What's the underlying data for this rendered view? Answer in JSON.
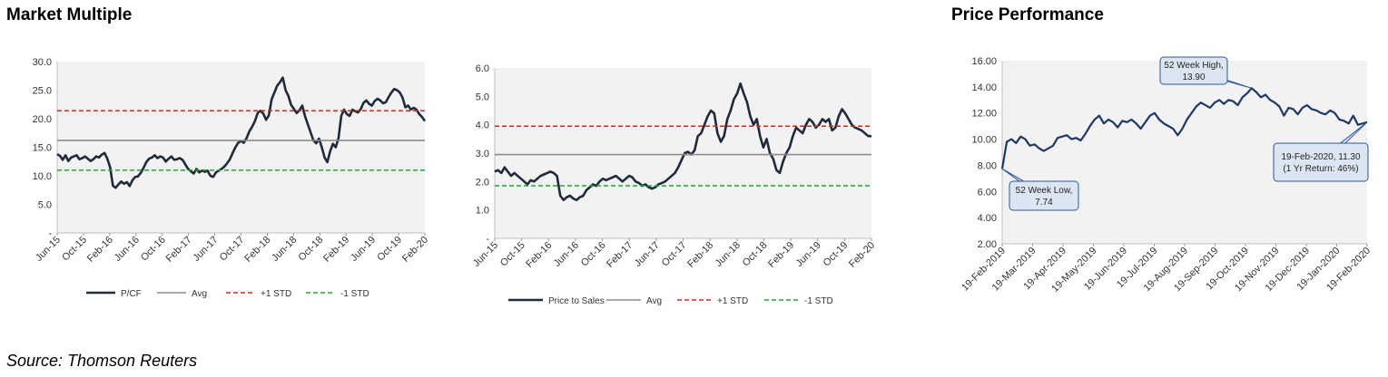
{
  "headings": {
    "market_multiple": "Market Multiple",
    "price_performance": "Price Performance"
  },
  "source": "Source: Thomson Reuters",
  "colors": {
    "plot_bg": "#f2f2f2",
    "line_dark": "#1f2a3a",
    "avg": "#8c8c8c",
    "plus_std": "#e0231c",
    "minus_std": "#1aa73c",
    "pp_line": "#1f3864"
  },
  "chart_data": [
    {
      "type": "line",
      "x_tick_labels": [
        "Jun-15",
        "Oct-15",
        "Feb-16",
        "Jun-16",
        "Oct-16",
        "Feb-17",
        "Jun-17",
        "Oct-17",
        "Feb-18",
        "Jun-18",
        "Oct-18",
        "Feb-19",
        "Jun-19",
        "Oct-19",
        "Feb-20"
      ],
      "y_tick_labels": [
        "-",
        "5.0",
        "10.0",
        "15.0",
        "20.0",
        "25.0",
        "30.0"
      ],
      "ylim": [
        0,
        30
      ],
      "series": [
        {
          "name": "P/CF",
          "style": "solid-thick",
          "values": [
            13.8,
            13.5,
            12.8,
            13.6,
            12.6,
            13.2,
            13.4,
            13.6,
            12.9,
            13.1,
            13.4,
            13.0,
            12.6,
            12.9,
            13.4,
            13.2,
            13.7,
            14.0,
            13.0,
            11.5,
            8.3,
            7.9,
            8.5,
            9.0,
            8.6,
            8.9,
            8.2,
            9.2,
            9.8,
            9.9,
            10.5,
            11.4,
            12.4,
            13.0,
            13.2,
            13.6,
            13.1,
            13.4,
            13.2,
            12.5,
            13.0,
            13.4,
            12.8,
            12.9,
            13.1,
            12.8,
            12.0,
            11.2,
            10.8,
            10.4,
            11.2,
            10.6,
            10.9,
            10.7,
            10.9,
            10.0,
            9.8,
            10.6,
            10.9,
            11.2,
            11.6,
            12.2,
            12.9,
            14.0,
            15.0,
            15.8,
            16.1,
            15.8,
            16.6,
            17.8,
            18.6,
            19.6,
            21.0,
            21.4,
            20.9,
            19.8,
            20.6,
            23.4,
            24.6,
            25.8,
            26.4,
            27.2,
            25.0,
            24.0,
            22.4,
            21.7,
            21.0,
            21.5,
            22.3,
            20.4,
            19.0,
            17.6,
            16.2,
            15.7,
            16.5,
            15.0,
            13.2,
            12.4,
            14.3,
            15.6,
            15.0,
            16.6,
            20.5,
            21.6,
            20.8,
            20.5,
            21.6,
            21.3,
            21.1,
            21.7,
            22.8,
            23.2,
            22.6,
            22.3,
            23.1,
            23.5,
            23.2,
            22.7,
            22.9,
            23.8,
            24.6,
            25.2,
            25.0,
            24.6,
            23.7,
            22.0,
            22.3,
            21.6,
            21.9,
            21.6,
            20.8,
            20.3,
            19.6
          ]
        },
        {
          "name": "Avg",
          "style": "solid-grey",
          "values": [
            16.2
          ]
        },
        {
          "name": "+1 STD",
          "style": "dashed-red",
          "values": [
            21.4
          ]
        },
        {
          "name": "-1 STD",
          "style": "dashed-green",
          "values": [
            11.0
          ]
        }
      ],
      "legend_position": "bottom",
      "grid": false
    },
    {
      "type": "line",
      "x_tick_labels": [
        "Jun-15",
        "Oct-15",
        "Feb-16",
        "Jun-16",
        "Oct-16",
        "Feb-17",
        "Jun-17",
        "Oct-17",
        "Feb-18",
        "Jun-18",
        "Oct-18",
        "Feb-19",
        "Jun-19",
        "Oct-19",
        "Feb-20"
      ],
      "y_tick_labels": [
        "-",
        "1.0",
        "2.0",
        "3.0",
        "4.0",
        "5.0",
        "6.0"
      ],
      "ylim": [
        0,
        6
      ],
      "series": [
        {
          "name": "Price to Sales",
          "style": "solid-thick",
          "values": [
            2.35,
            2.4,
            2.3,
            2.5,
            2.35,
            2.2,
            2.3,
            2.2,
            2.1,
            2.0,
            1.9,
            2.05,
            2.0,
            2.1,
            2.2,
            2.25,
            2.3,
            2.35,
            2.3,
            2.2,
            1.5,
            1.35,
            1.45,
            1.5,
            1.4,
            1.35,
            1.45,
            1.5,
            1.7,
            1.8,
            1.9,
            1.85,
            2.0,
            2.1,
            2.05,
            2.1,
            2.15,
            2.2,
            2.1,
            2.0,
            2.1,
            2.2,
            2.15,
            2.0,
            1.95,
            1.85,
            1.9,
            1.8,
            1.75,
            1.8,
            1.9,
            1.95,
            2.0,
            2.1,
            2.2,
            2.3,
            2.5,
            2.75,
            3.0,
            3.05,
            2.95,
            3.1,
            3.6,
            3.7,
            4.0,
            4.3,
            4.5,
            4.4,
            3.7,
            3.4,
            3.6,
            4.2,
            4.5,
            4.9,
            5.1,
            5.45,
            5.1,
            4.8,
            4.3,
            4.0,
            4.2,
            3.6,
            3.2,
            3.5,
            3.0,
            2.8,
            2.4,
            2.3,
            2.7,
            3.0,
            3.2,
            3.6,
            3.9,
            3.8,
            3.7,
            4.0,
            4.2,
            4.1,
            3.9,
            4.0,
            4.2,
            4.1,
            4.2,
            3.8,
            3.9,
            4.3,
            4.55,
            4.4,
            4.2,
            4.0,
            3.9,
            3.85,
            3.8,
            3.7,
            3.6,
            3.6
          ]
        },
        {
          "name": "Avg",
          "style": "solid-grey",
          "values": [
            2.95
          ]
        },
        {
          "name": "+1 STD",
          "style": "dashed-red",
          "values": [
            3.95
          ]
        },
        {
          "name": "-1 STD",
          "style": "dashed-green",
          "values": [
            1.85
          ]
        }
      ],
      "legend_position": "bottom",
      "grid": false
    },
    {
      "type": "line",
      "x_tick_labels": [
        "19-Feb-2019",
        "19-Mar-2019",
        "19-Apr-2019",
        "19-May-2019",
        "19-Jun-2019",
        "19-Jul-2019",
        "19-Aug-2019",
        "19-Sep-2019",
        "19-Oct-2019",
        "19-Nov-2019",
        "19-Dec-2019",
        "19-Jan-2020",
        "19-Feb-2020"
      ],
      "y_tick_labels": [
        "2.00",
        "4.00",
        "6.00",
        "8.00",
        "10.00",
        "12.00",
        "14.00",
        "16.00"
      ],
      "ylim": [
        2,
        16
      ],
      "series": [
        {
          "name": "",
          "style": "solid-navy",
          "values": [
            7.74,
            9.8,
            10.0,
            9.7,
            10.2,
            10.0,
            9.5,
            9.6,
            9.3,
            9.1,
            9.3,
            9.5,
            10.1,
            10.2,
            10.3,
            10.0,
            10.1,
            9.9,
            10.4,
            11.0,
            11.5,
            11.8,
            11.2,
            11.5,
            11.3,
            10.9,
            11.4,
            11.3,
            11.5,
            11.2,
            10.8,
            11.3,
            11.8,
            12.0,
            11.5,
            11.2,
            11.0,
            10.8,
            10.3,
            10.8,
            11.5,
            12.0,
            12.5,
            12.8,
            12.6,
            12.4,
            12.8,
            13.0,
            12.7,
            13.0,
            12.9,
            12.6,
            13.2,
            13.5,
            13.9,
            13.6,
            13.2,
            13.4,
            13.0,
            12.8,
            12.5,
            11.8,
            12.4,
            12.3,
            11.9,
            12.4,
            12.6,
            12.3,
            12.2,
            12.0,
            11.9,
            12.2,
            12.0,
            11.5,
            11.4,
            11.2,
            11.8,
            11.1,
            11.2,
            11.3
          ]
        }
      ],
      "annotations": [
        {
          "text": "52 Week High, 13.90",
          "line1": "52 Week High,",
          "line2": "13.90"
        },
        {
          "text": "52 Week Low, 7.74",
          "line1": "52 Week Low,",
          "line2": "7.74"
        },
        {
          "text": "19-Feb-2020, 11.30 (1 Yr Return: 46%)",
          "line1": "19-Feb-2020, 11.30",
          "line2": "(1 Yr Return: 46%)"
        }
      ],
      "grid": false
    }
  ]
}
